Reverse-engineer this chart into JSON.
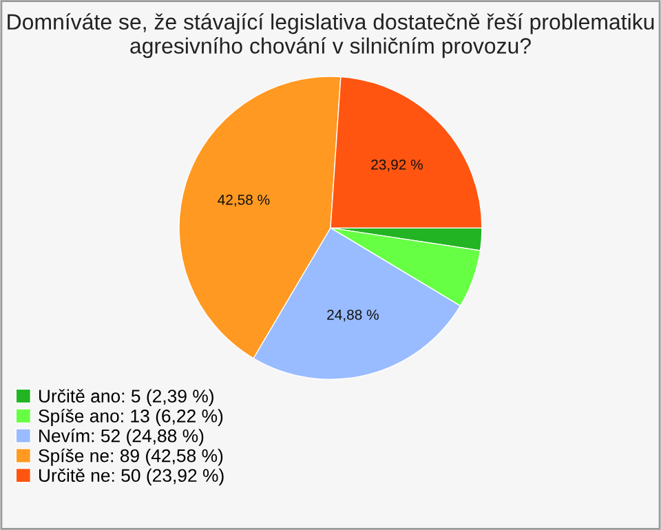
{
  "chart_data": {
    "type": "pie",
    "title": "Domníváte se, že stávající legislativa dostatečně řeší problematiku\nagresivního chování v silničním provozu?",
    "categories": [
      "Určitě ano: 5 (2,39 %)",
      "Spíše ano: 13 (6,22 %)",
      "Nevím: 52 (24,88 %)",
      "Spíše ne: 89 (42,58 %)",
      "Určitě ne: 50 (23,92 %)"
    ],
    "values": [
      2.39,
      6.22,
      24.88,
      42.58,
      23.92
    ],
    "colors": [
      "#22b422",
      "#66ff44",
      "#99bbff",
      "#ff9922",
      "#ff5511"
    ],
    "value_labels": [
      null,
      null,
      "24,88 %",
      "42,58 %",
      "23,92 %"
    ],
    "legend": "bottom left"
  }
}
